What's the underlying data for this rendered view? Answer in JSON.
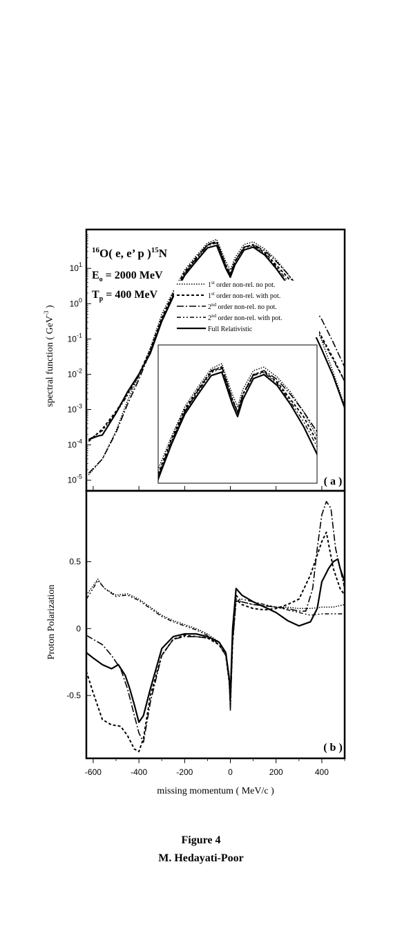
{
  "figure": {
    "caption_title": "Figure 4",
    "caption_author": "M. Hedayati-Poor"
  },
  "chart_data": [
    {
      "type": "line",
      "panel_label": "( a )",
      "title": "16O( e, e' p )15N",
      "annotation_reaction": {
        "pre": "16",
        "a": "O( e, e’ p )",
        "post": "15",
        "b": "N"
      },
      "annotation_energy": {
        "sym": "E",
        "sub": "o",
        "rest": " = 2000 MeV"
      },
      "annotation_tp": {
        "sym": "T",
        "sub": "p",
        "rest": " = 400 MeV"
      },
      "ylabel": "spectral function  ( GeV-3 )",
      "ylabel_parts": {
        "main": "spectral function  ( GeV",
        "sup": "-3",
        "end": " )"
      },
      "yscale": "log",
      "xlim": [
        -630,
        500
      ],
      "ylim_log10": [
        -5.3,
        2.1
      ],
      "y_ticks": [
        {
          "m": "10",
          "e": "1",
          "v": 1
        },
        {
          "m": "10",
          "e": "0",
          "v": 0
        },
        {
          "m": "10",
          "e": "-1",
          "v": -1
        },
        {
          "m": "10",
          "e": "-2",
          "v": -2
        },
        {
          "m": "10",
          "e": "-3",
          "v": -3
        },
        {
          "m": "10",
          "e": "-4",
          "v": -4
        },
        {
          "m": "10",
          "e": "-5",
          "v": -5
        }
      ],
      "legend": [
        {
          "ord": "1",
          "sup": "st",
          "text": " order non-rel. no pot.",
          "dash": "1.5,2",
          "width": 1.5
        },
        {
          "ord": "1",
          "sup": "st",
          "text": " order non-rel. with pot.",
          "dash": "4,3",
          "width": 2
        },
        {
          "ord": "2",
          "sup": "nd",
          "text": " order non-rel. no pot.",
          "dash": "10,3,2,3",
          "width": 1.6
        },
        {
          "ord": "2",
          "sup": "nd",
          "text": " order non-rel. with pot.",
          "dash": "6,3,2,3,2,3",
          "width": 1.4
        },
        {
          "ord": "",
          "sup": "",
          "text": "Full Relativistic",
          "dash": "",
          "width": 2.2
        }
      ],
      "series": [
        {
          "name": "1st order non-rel. no pot.",
          "x": [
            -620,
            -560,
            -500,
            -450,
            -400,
            -350,
            -300,
            -250,
            -200,
            -150,
            -100,
            -60,
            -20,
            0,
            20,
            60,
            100,
            150,
            200,
            250,
            300,
            350,
            400,
            450,
            500
          ],
          "y": [
            -4.85,
            -4.4,
            -3.6,
            -2.75,
            -2.05,
            -1.25,
            -0.3,
            0.35,
            0.95,
            1.35,
            1.72,
            1.82,
            1.2,
            0.95,
            1.3,
            1.68,
            1.75,
            1.55,
            1.25,
            0.85,
            0.35,
            -0.25,
            -1.05,
            -1.95,
            -2.9
          ]
        },
        {
          "name": "1st order non-rel. with pot.",
          "x": [
            -620,
            -560,
            -500,
            -450,
            -400,
            -350,
            -300,
            -250,
            -200,
            -150,
            -100,
            -60,
            -20,
            0,
            20,
            60,
            100,
            150,
            200,
            250,
            300,
            350,
            400,
            450,
            500
          ],
          "y": [
            -3.9,
            -3.55,
            -3.05,
            -2.55,
            -2.0,
            -1.3,
            -0.4,
            0.3,
            0.9,
            1.3,
            1.66,
            1.75,
            1.1,
            0.85,
            1.2,
            1.6,
            1.66,
            1.45,
            1.1,
            0.75,
            0.25,
            -0.3,
            -0.95,
            -1.55,
            -2.2
          ]
        },
        {
          "name": "2nd order non-rel. no pot.",
          "x": [
            -620,
            -560,
            -500,
            -450,
            -400,
            -350,
            -300,
            -250,
            -200,
            -150,
            -100,
            -60,
            -20,
            0,
            20,
            60,
            100,
            150,
            200,
            250,
            300,
            350,
            400,
            450,
            500
          ],
          "y": [
            -4.8,
            -4.4,
            -3.65,
            -2.85,
            -2.15,
            -1.35,
            -0.45,
            0.25,
            0.85,
            1.28,
            1.68,
            1.76,
            1.1,
            0.82,
            1.2,
            1.6,
            1.68,
            1.5,
            1.2,
            0.85,
            0.45,
            0.05,
            -0.45,
            -1.1,
            -1.8
          ]
        },
        {
          "name": "2nd order non-rel. with pot.",
          "x": [
            -620,
            -560,
            -500,
            -450,
            -400,
            -350,
            -300,
            -250,
            -200,
            -150,
            -100,
            -60,
            -20,
            0,
            20,
            60,
            100,
            150,
            200,
            250,
            300,
            350,
            400,
            450,
            500
          ],
          "y": [
            -3.85,
            -3.6,
            -3.1,
            -2.6,
            -2.05,
            -1.35,
            -0.45,
            0.25,
            0.85,
            1.25,
            1.64,
            1.72,
            1.08,
            0.82,
            1.18,
            1.58,
            1.64,
            1.42,
            1.05,
            0.65,
            0.15,
            -0.4,
            -1.0,
            -1.6,
            -2.2
          ]
        },
        {
          "name": "Full Relativistic",
          "x": [
            -620,
            -580,
            -560,
            -500,
            -450,
            -400,
            -350,
            -300,
            -250,
            -200,
            -150,
            -100,
            -60,
            -20,
            0,
            20,
            60,
            100,
            150,
            200,
            250,
            300,
            350,
            400,
            450,
            500
          ],
          "y": [
            -3.85,
            -3.75,
            -3.72,
            -3.1,
            -2.5,
            -2.0,
            -1.4,
            -0.5,
            0.2,
            0.8,
            1.2,
            1.58,
            1.65,
            1.0,
            0.75,
            1.1,
            1.52,
            1.6,
            1.38,
            1.0,
            0.55,
            0.0,
            -0.6,
            -1.3,
            -2.05,
            -2.95
          ]
        }
      ]
    },
    {
      "type": "line",
      "panel_label": "( b )",
      "xlabel": "missing momentum ( MeV/c )",
      "ylabel": "Proton Polarization",
      "xlim": [
        -630,
        500
      ],
      "ylim": [
        -0.97,
        1.03
      ],
      "x_ticks": [
        "-600",
        "-400",
        "-200",
        "0",
        "200",
        "400"
      ],
      "x_tick_values": [
        -600,
        -400,
        -200,
        0,
        200,
        400
      ],
      "y_ticks": [
        "0.5",
        "0",
        "-0.5"
      ],
      "y_tick_values": [
        0.5,
        0,
        -0.5
      ],
      "series": [
        {
          "name": "1st order non-rel. no pot.",
          "x": [
            -630,
            -600,
            -580,
            -550,
            -500,
            -450,
            -400,
            -350,
            -300,
            -250,
            -200,
            -150,
            -100,
            -50,
            -20,
            -5,
            0,
            10,
            25,
            50,
            100,
            150,
            200,
            250,
            300,
            350,
            400,
            450,
            500
          ],
          "y": [
            0.25,
            0.32,
            0.37,
            0.3,
            0.25,
            0.26,
            0.22,
            0.16,
            0.1,
            0.06,
            0.03,
            0.0,
            -0.04,
            -0.1,
            -0.18,
            -0.35,
            -0.6,
            -0.1,
            0.22,
            0.2,
            0.18,
            0.17,
            0.16,
            0.16,
            0.15,
            0.15,
            0.16,
            0.16,
            0.18
          ]
        },
        {
          "name": "1st order non-rel. with pot.",
          "x": [
            -630,
            -600,
            -560,
            -520,
            -480,
            -450,
            -420,
            -400,
            -380,
            -350,
            -300,
            -250,
            -200,
            -150,
            -100,
            -50,
            -20,
            -5,
            0,
            10,
            25,
            50,
            100,
            150,
            200,
            250,
            300,
            350,
            380,
            400,
            420,
            450,
            480,
            500
          ],
          "y": [
            -0.32,
            -0.48,
            -0.68,
            -0.72,
            -0.73,
            -0.8,
            -0.9,
            -0.92,
            -0.82,
            -0.5,
            -0.2,
            -0.08,
            -0.05,
            -0.06,
            -0.07,
            -0.12,
            -0.2,
            -0.4,
            -0.55,
            -0.1,
            0.22,
            0.18,
            0.15,
            0.14,
            0.15,
            0.18,
            0.22,
            0.4,
            0.55,
            0.65,
            0.72,
            0.45,
            0.3,
            0.25
          ]
        },
        {
          "name": "2nd order non-rel. no pot.",
          "x": [
            -630,
            -600,
            -560,
            -520,
            -480,
            -450,
            -420,
            -400,
            -380,
            -350,
            -300,
            -250,
            -200,
            -150,
            -100,
            -50,
            -20,
            -5,
            0,
            10,
            25,
            50,
            100,
            150,
            200,
            250,
            300,
            330,
            360,
            380,
            400,
            420,
            440,
            460,
            500
          ],
          "y": [
            -0.05,
            -0.08,
            -0.12,
            -0.2,
            -0.3,
            -0.45,
            -0.65,
            -0.78,
            -0.85,
            -0.55,
            -0.2,
            -0.08,
            -0.06,
            -0.06,
            -0.07,
            -0.1,
            -0.18,
            -0.4,
            -0.6,
            -0.05,
            0.25,
            0.2,
            0.18,
            0.17,
            0.16,
            0.15,
            0.13,
            0.13,
            0.3,
            0.6,
            0.85,
            0.95,
            0.9,
            0.6,
            0.3
          ]
        },
        {
          "name": "2nd order non-rel. with pot.",
          "x": [
            -630,
            -600,
            -580,
            -550,
            -500,
            -450,
            -400,
            -350,
            -300,
            -250,
            -200,
            -150,
            -100,
            -50,
            -20,
            -5,
            0,
            10,
            25,
            50,
            100,
            150,
            200,
            250,
            300,
            350,
            400,
            450,
            500
          ],
          "y": [
            0.22,
            0.3,
            0.36,
            0.3,
            0.24,
            0.25,
            0.21,
            0.15,
            0.09,
            0.05,
            0.02,
            -0.01,
            -0.05,
            -0.12,
            -0.2,
            -0.38,
            -0.62,
            -0.1,
            0.2,
            0.22,
            0.2,
            0.18,
            0.16,
            0.14,
            0.12,
            0.1,
            0.11,
            0.11,
            0.11
          ]
        },
        {
          "name": "Full Relativistic",
          "x": [
            -630,
            -600,
            -560,
            -520,
            -490,
            -460,
            -440,
            -420,
            -400,
            -380,
            -350,
            -300,
            -250,
            -200,
            -150,
            -100,
            -50,
            -20,
            -5,
            0,
            10,
            25,
            50,
            100,
            150,
            200,
            250,
            300,
            350,
            380,
            400,
            430,
            450,
            470,
            480,
            500
          ],
          "y": [
            -0.18,
            -0.22,
            -0.27,
            -0.3,
            -0.27,
            -0.35,
            -0.45,
            -0.57,
            -0.7,
            -0.65,
            -0.45,
            -0.15,
            -0.06,
            -0.04,
            -0.04,
            -0.06,
            -0.1,
            -0.18,
            -0.38,
            -0.5,
            0.0,
            0.3,
            0.25,
            0.2,
            0.16,
            0.12,
            0.06,
            0.02,
            0.05,
            0.15,
            0.35,
            0.45,
            0.5,
            0.52,
            0.45,
            0.35
          ]
        }
      ]
    }
  ]
}
